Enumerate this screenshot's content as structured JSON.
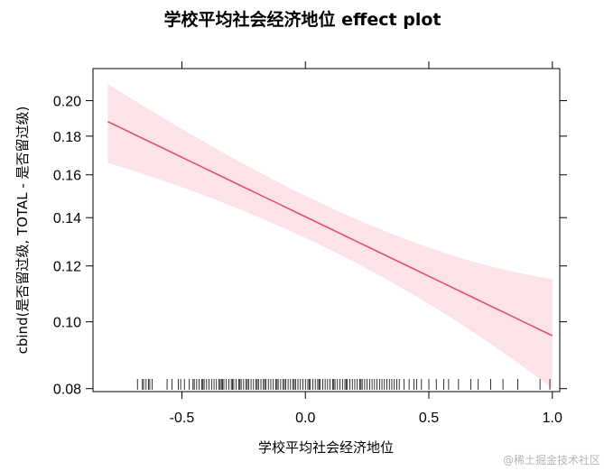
{
  "chart_data": {
    "type": "line",
    "title": "学校平均社会经济地位 effect plot",
    "xlabel": "学校平均社会经济地位",
    "ylabel": "cbind(是否留过级, TOTAL - 是否留过级)",
    "xlim": [
      -0.86,
      1.03
    ],
    "y_scale": "logit",
    "ylim": [
      0.0792,
      0.2195
    ],
    "x_ticks": [
      -0.5,
      0.0,
      0.5,
      1.0
    ],
    "x_tick_labels": [
      "-0.5",
      "0.0",
      "0.5",
      "1.0"
    ],
    "y_ticks": [
      0.08,
      0.1,
      0.12,
      0.14,
      0.16,
      0.18,
      0.2
    ],
    "y_tick_labels": [
      "0.08",
      "0.10",
      "0.12",
      "0.14",
      "0.16",
      "0.18",
      "0.20"
    ],
    "grid": false,
    "line_color": "#e0506c",
    "band_color": "#fbe3e8",
    "series": [
      {
        "x": [
          -0.8,
          1.0
        ],
        "fit": [
          0.188,
          0.0955
        ],
        "lower": [
          0.166,
          0.08
        ],
        "upper": [
          0.21,
          0.115
        ]
      }
    ],
    "rug_x": [
      -0.68,
      -0.66,
      -0.655,
      -0.645,
      -0.635,
      -0.63,
      -0.62,
      -0.56,
      -0.54,
      -0.515,
      -0.505,
      -0.49,
      -0.47,
      -0.455,
      -0.45,
      -0.44,
      -0.43,
      -0.42,
      -0.415,
      -0.41,
      -0.4,
      -0.39,
      -0.38,
      -0.37,
      -0.36,
      -0.35,
      -0.345,
      -0.34,
      -0.335,
      -0.33,
      -0.32,
      -0.31,
      -0.3,
      -0.295,
      -0.29,
      -0.28,
      -0.27,
      -0.265,
      -0.26,
      -0.25,
      -0.24,
      -0.235,
      -0.23,
      -0.22,
      -0.21,
      -0.2,
      -0.195,
      -0.19,
      -0.18,
      -0.17,
      -0.165,
      -0.16,
      -0.15,
      -0.14,
      -0.13,
      -0.12,
      -0.115,
      -0.11,
      -0.1,
      -0.09,
      -0.085,
      -0.08,
      -0.07,
      -0.06,
      -0.05,
      -0.045,
      -0.04,
      -0.03,
      -0.02,
      -0.01,
      0.0,
      0.01,
      0.015,
      0.02,
      0.03,
      0.04,
      0.05,
      0.055,
      0.06,
      0.07,
      0.08,
      0.09,
      0.1,
      0.11,
      0.115,
      0.12,
      0.13,
      0.14,
      0.15,
      0.16,
      0.165,
      0.17,
      0.18,
      0.19,
      0.2,
      0.21,
      0.22,
      0.225,
      0.23,
      0.24,
      0.25,
      0.26,
      0.27,
      0.28,
      0.29,
      0.3,
      0.31,
      0.32,
      0.33,
      0.34,
      0.35,
      0.36,
      0.37,
      0.38,
      0.4,
      0.42,
      0.44,
      0.45,
      0.47,
      0.5,
      0.53,
      0.56,
      0.58,
      0.62,
      0.67,
      0.7,
      0.75,
      0.8,
      0.86,
      0.95,
      0.99
    ]
  },
  "watermark": "@稀土掘金技术社区"
}
